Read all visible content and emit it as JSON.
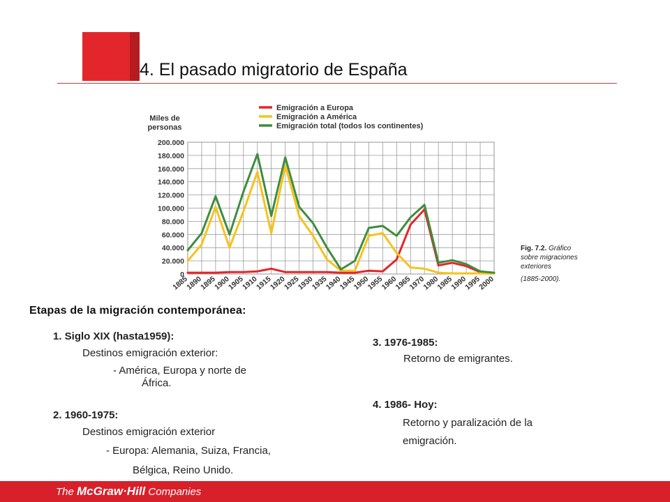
{
  "header": {
    "title": "4. El pasado migratorio de España"
  },
  "chart_data": {
    "type": "line",
    "ylabel_line1": "Miles de",
    "ylabel_line2": "personas",
    "x": [
      1885,
      1890,
      1895,
      1900,
      1905,
      1910,
      1915,
      1920,
      1925,
      1930,
      1935,
      1940,
      1945,
      1950,
      1955,
      1960,
      1965,
      1970,
      1980,
      1985,
      1990,
      1995,
      2000
    ],
    "ylim": [
      0,
      200000
    ],
    "yticks": [
      0,
      20000,
      40000,
      60000,
      80000,
      100000,
      120000,
      140000,
      160000,
      180000,
      200000
    ],
    "ytick_labels": [
      "0",
      "20.000",
      "40.000",
      "60.000",
      "80.000",
      "100.000",
      "120.000",
      "140.000",
      "160.000",
      "180.000",
      "200.000"
    ],
    "xtick_labels": [
      "1885",
      "1890",
      "1895",
      "1900",
      "1905",
      "1910",
      "1915",
      "1920",
      "1925",
      "1930",
      "1935",
      "1940",
      "1945",
      "1950",
      "1955",
      "1960",
      "1965",
      "1970",
      "1980",
      "1985",
      "1990",
      "1995",
      "2000"
    ],
    "grid": true,
    "legend_position": "top",
    "series": [
      {
        "name": "Emigración a Europa",
        "color": "#e3262b",
        "values": [
          2000,
          2000,
          2000,
          3000,
          3000,
          4000,
          8000,
          3000,
          3000,
          3000,
          3000,
          2000,
          2000,
          5000,
          4000,
          22000,
          75000,
          98000,
          13000,
          17000,
          12000,
          3000,
          1000
        ]
      },
      {
        "name": "Emigración a América",
        "color": "#f7c21b",
        "values": [
          20000,
          45000,
          102000,
          40000,
          95000,
          155000,
          62000,
          165000,
          88000,
          58000,
          22000,
          5000,
          5000,
          58000,
          62000,
          32000,
          10000,
          8000,
          2000,
          1000,
          1000,
          1000,
          500
        ]
      },
      {
        "name": "Emigración total (todos los continentes)",
        "color": "#3e8d3d",
        "values": [
          36000,
          62000,
          118000,
          60000,
          125000,
          182000,
          88000,
          177000,
          102000,
          77000,
          40000,
          7000,
          20000,
          70000,
          73000,
          58000,
          86000,
          105000,
          17000,
          21000,
          15000,
          4000,
          2000
        ]
      }
    ]
  },
  "caption": {
    "fig": "Fig. 7.2.",
    "text_line1": "Gráfico",
    "text_line2": "sobre migraciones",
    "text_line3": "exteriores",
    "span": "(1885-2000)."
  },
  "stages": {
    "title": "Etapas de la migración contemporánea:",
    "s1_title": "1. Siglo XIX (hasta1959):",
    "s1_line1": "Destinos emigración exterior:",
    "s1_line2": "- América, Europa y norte de",
    "s1_line3": "África.",
    "s2_title": "2. 1960-1975:",
    "s2_line1": "Destinos emigración exterior",
    "s2_line2": "- Europa: Alemania, Suiza, Francia,",
    "s2_line3": "Bélgica, Reino Unido.",
    "s3_title": "3. 1976-1985:",
    "s3_line1": "Retorno de emigrantes.",
    "s4_title": "4. 1986- Hoy:",
    "s4_line1": "Retorno y paralización de la",
    "s4_line2": "emigración."
  },
  "footer": {
    "the": "The ",
    "brand": "McGraw·Hill",
    "companies": " Companies"
  }
}
